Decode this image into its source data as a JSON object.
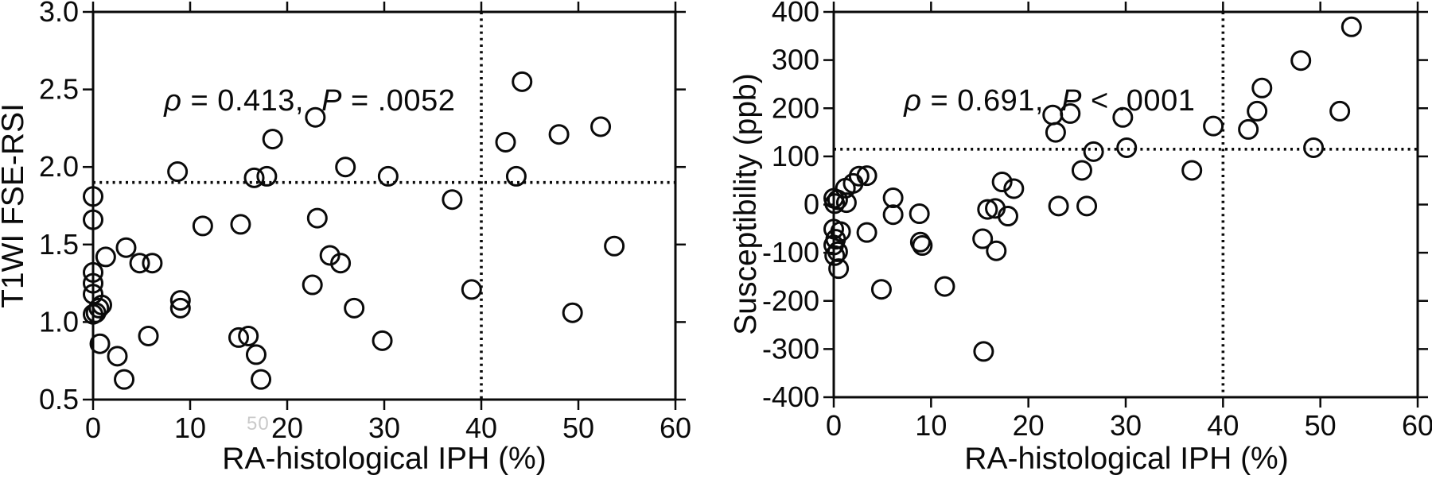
{
  "figure": {
    "background_color": "#ffffff",
    "ink_color": "#0a0a0a",
    "marker_shape": "open-circle",
    "threshold_line_style": "dotted"
  },
  "artifacts": {
    "ghost_text": "50"
  },
  "chart_data": [
    {
      "id": "t1wi-fse-rsi-vs-iph",
      "type": "scatter",
      "title": "",
      "xlabel": "RA-histological IPH (%)",
      "ylabel": "T1WI FSE-RSI",
      "xlim": [
        0,
        60
      ],
      "ylim": [
        0.5,
        3.0
      ],
      "xtick_values": [
        0,
        10,
        20,
        30,
        40,
        50,
        60
      ],
      "xtick_labels": [
        "0",
        "10",
        "20",
        "30",
        "40",
        "50",
        "60"
      ],
      "ytick_values": [
        0.5,
        1.0,
        1.5,
        2.0,
        2.5,
        3.0
      ],
      "ytick_labels": [
        "0.5",
        "1.0",
        "1.5",
        "2.0",
        "2.5",
        "3.0"
      ],
      "grid": false,
      "legend": null,
      "annotation": {
        "text": "ρ = 0.413, P = .0052",
        "rho_symbol": "ρ",
        "rho_rest": " = 0.413,  ",
        "p_symbol": "P",
        "p_rest": " = .0052"
      },
      "thresholds": {
        "vertical_x": 40,
        "horizontal_y": 1.9,
        "style": "dotted"
      },
      "points": [
        [
          0,
          1.81
        ],
        [
          0,
          1.66
        ],
        [
          0,
          1.32
        ],
        [
          0,
          1.25
        ],
        [
          0,
          1.18
        ],
        [
          0,
          1.05
        ],
        [
          0.3,
          1.06
        ],
        [
          0.6,
          1.09
        ],
        [
          0.9,
          1.11
        ],
        [
          0.7,
          0.86
        ],
        [
          1.3,
          1.42
        ],
        [
          2.5,
          0.78
        ],
        [
          3.2,
          0.63
        ],
        [
          3.4,
          1.48
        ],
        [
          4.8,
          1.38
        ],
        [
          5.7,
          0.91
        ],
        [
          6.1,
          1.38
        ],
        [
          8.7,
          1.97
        ],
        [
          9.0,
          1.14
        ],
        [
          9.0,
          1.09
        ],
        [
          11.3,
          1.62
        ],
        [
          15.0,
          0.9
        ],
        [
          15.2,
          1.63
        ],
        [
          16.0,
          0.91
        ],
        [
          16.6,
          1.93
        ],
        [
          16.8,
          0.79
        ],
        [
          17.3,
          0.63
        ],
        [
          17.9,
          1.94
        ],
        [
          18.5,
          2.18
        ],
        [
          22.6,
          1.24
        ],
        [
          22.9,
          2.32
        ],
        [
          23.1,
          1.67
        ],
        [
          24.4,
          1.43
        ],
        [
          25.5,
          1.38
        ],
        [
          26.0,
          2.0
        ],
        [
          26.9,
          1.09
        ],
        [
          29.8,
          0.88
        ],
        [
          30.4,
          1.94
        ],
        [
          37.0,
          1.79
        ],
        [
          39.0,
          1.21
        ],
        [
          42.5,
          2.16
        ],
        [
          43.6,
          1.94
        ],
        [
          44.2,
          2.55
        ],
        [
          48.0,
          2.21
        ],
        [
          49.4,
          1.06
        ],
        [
          52.3,
          2.26
        ],
        [
          53.7,
          1.49
        ]
      ]
    },
    {
      "id": "susceptibility-vs-iph",
      "type": "scatter",
      "title": "",
      "xlabel": "RA-histological IPH (%)",
      "ylabel": "Susceptibility (ppb)",
      "xlim": [
        0,
        60
      ],
      "ylim": [
        -400,
        400
      ],
      "xtick_values": [
        0,
        10,
        20,
        30,
        40,
        50,
        60
      ],
      "xtick_labels": [
        "0",
        "10",
        "20",
        "30",
        "40",
        "50",
        "60"
      ],
      "ytick_values": [
        -400,
        -300,
        -200,
        -100,
        0,
        100,
        200,
        300,
        400
      ],
      "ytick_labels": [
        "-400",
        "-300",
        "-200",
        "-100",
        "0",
        "100",
        "200",
        "300",
        "400"
      ],
      "grid": false,
      "legend": null,
      "annotation": {
        "text": "ρ = 0.691, P < .0001",
        "rho_symbol": "ρ",
        "rho_rest": " = 0.691,  ",
        "p_symbol": "P",
        "p_rest": " < .0001"
      },
      "thresholds": {
        "vertical_x": 40,
        "horizontal_y": 115,
        "style": "dotted"
      },
      "points": [
        [
          0,
          13
        ],
        [
          0.4,
          10
        ],
        [
          0.1,
          2
        ],
        [
          1.3,
          4
        ],
        [
          1.2,
          34
        ],
        [
          2.0,
          44
        ],
        [
          2.6,
          59
        ],
        [
          3.4,
          60
        ],
        [
          0,
          -51
        ],
        [
          0.7,
          -56
        ],
        [
          3.4,
          -58
        ],
        [
          0.2,
          -72
        ],
        [
          0,
          -84
        ],
        [
          0.4,
          -98
        ],
        [
          0.1,
          -106
        ],
        [
          0.5,
          -133
        ],
        [
          4.9,
          -176
        ],
        [
          6.1,
          14
        ],
        [
          6.1,
          -21
        ],
        [
          8.8,
          -19
        ],
        [
          8.9,
          -78
        ],
        [
          9.1,
          -85
        ],
        [
          11.4,
          -170
        ],
        [
          15.3,
          -71
        ],
        [
          15.8,
          -10
        ],
        [
          16.6,
          -8
        ],
        [
          16.7,
          -96
        ],
        [
          17.3,
          47
        ],
        [
          17.9,
          -24
        ],
        [
          18.5,
          33
        ],
        [
          15.4,
          -305
        ],
        [
          22.5,
          186
        ],
        [
          22.8,
          150
        ],
        [
          23.1,
          -3
        ],
        [
          24.3,
          189
        ],
        [
          25.5,
          71
        ],
        [
          26.0,
          -3
        ],
        [
          26.7,
          110
        ],
        [
          29.7,
          181
        ],
        [
          30.1,
          118
        ],
        [
          36.8,
          71
        ],
        [
          39.0,
          163
        ],
        [
          42.6,
          156
        ],
        [
          43.5,
          194
        ],
        [
          44.0,
          242
        ],
        [
          48.0,
          299
        ],
        [
          49.3,
          118
        ],
        [
          52.0,
          194
        ],
        [
          53.2,
          369
        ]
      ]
    }
  ]
}
